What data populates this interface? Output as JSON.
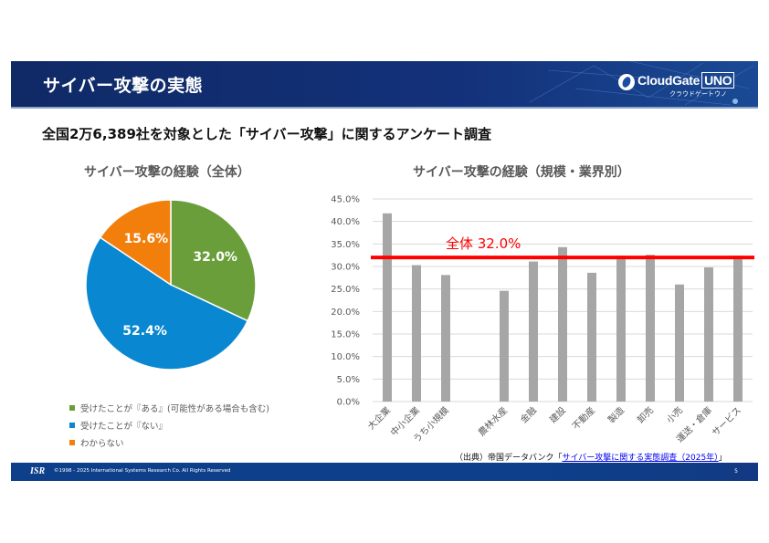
{
  "header": {
    "title": "サイバー攻撃の実態",
    "logo_text": "CloudGate",
    "logo_uno": "UNO",
    "logo_sub": "クラウドゲートウノ"
  },
  "subtitle": "全国2万6,389社を対象とした「サイバー攻撃」に関するアンケート調査",
  "colors": {
    "header_bg": "#13317a",
    "footer_bg": "#0e3f8a",
    "pie_yes": "#6a9e3a",
    "pie_no": "#0a87d1",
    "pie_unknown": "#f27f0c",
    "bar": "#a6a6a6",
    "overall_line": "#ff0000"
  },
  "chart_data": [
    {
      "type": "pie",
      "title": "サイバー攻撃の経験（全体）",
      "slices": [
        {
          "label": "受けたことが『ある』(可能性がある場合も含む)",
          "value": 32.0,
          "display": "32.0%",
          "color": "#6a9e3a"
        },
        {
          "label": "受けたことが『ない』",
          "value": 52.4,
          "display": "52.4%",
          "color": "#0a87d1"
        },
        {
          "label": "わからない",
          "value": 15.6,
          "display": "15.6%",
          "color": "#f27f0c"
        }
      ],
      "legend_position": "bottom"
    },
    {
      "type": "bar",
      "title": "サイバー攻撃の経験（規模・業界別）",
      "categories": [
        "大企業",
        "中小企業",
        "うち小規模",
        "",
        "農林水産",
        "金融",
        "建設",
        "不動産",
        "製造",
        "卸売",
        "小売",
        "運送・倉庫",
        "サービス"
      ],
      "values": [
        41.8,
        30.3,
        28.1,
        null,
        24.6,
        31.1,
        34.3,
        28.6,
        32.4,
        32.6,
        26.0,
        29.8,
        32.4
      ],
      "ylim": [
        0,
        45
      ],
      "yticks": [
        "0.0%",
        "5.0%",
        "10.0%",
        "15.0%",
        "20.0%",
        "25.0%",
        "30.0%",
        "35.0%",
        "40.0%",
        "45.0%"
      ],
      "ytick_values": [
        0,
        5,
        10,
        15,
        20,
        25,
        30,
        35,
        40,
        45
      ],
      "grid": true,
      "reference_line": {
        "value": 32.0,
        "label": "全体 32.0%",
        "color": "#ff0000"
      },
      "xlabel": "",
      "ylabel": ""
    }
  ],
  "source": {
    "prefix": "（出典）帝国データバンク「",
    "link_text": "サイバー攻撃に関する実態調査（2025年）",
    "suffix": "」"
  },
  "footer": {
    "logo": "ISR",
    "copyright": "©1998 - 2025 International Systems Research Co. All Rights Reserved",
    "page": "5"
  }
}
